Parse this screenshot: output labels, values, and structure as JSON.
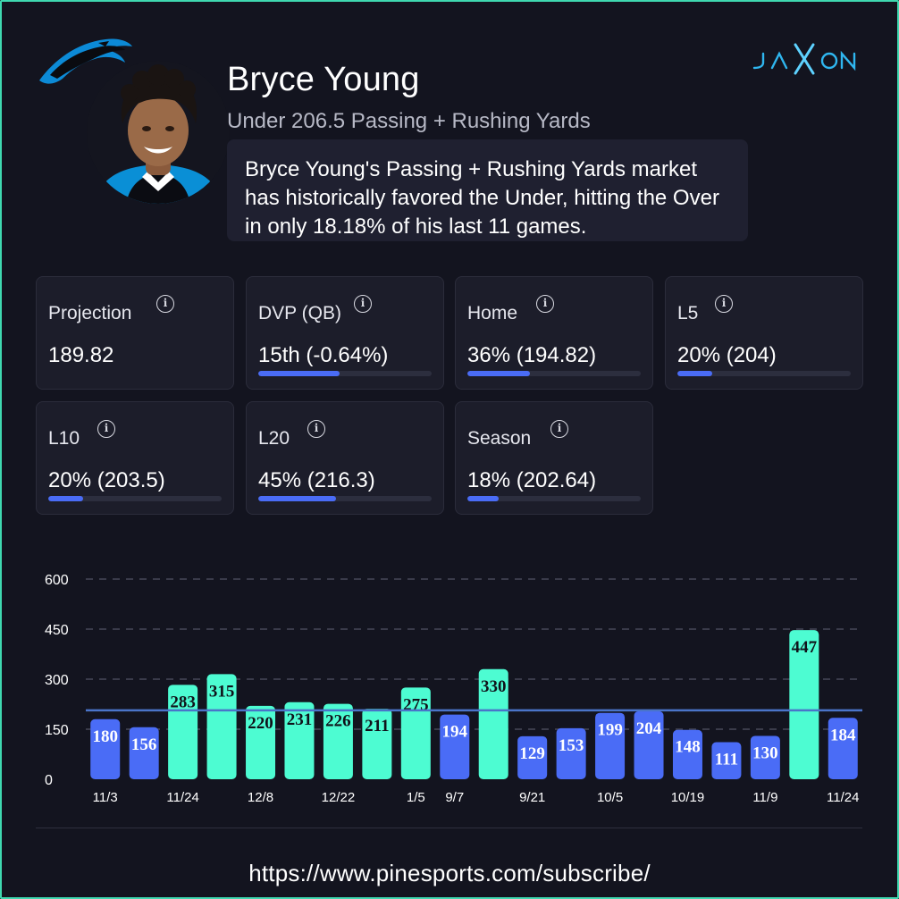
{
  "header": {
    "player_name": "Bryce Young",
    "market": "Under 206.5 Passing + Rushing Yards",
    "description": "Bryce Young's Passing + Rushing Yards market has historically favored the Under, hitting the Over in only 18.18% of his last 11 games.",
    "team_logo_icon": "panthers-logo-icon",
    "brand": "JAXON"
  },
  "stats": [
    {
      "label": "Projection",
      "value": "189.82",
      "bar_fraction": null
    },
    {
      "label": "DVP (QB)",
      "value": "15th (-0.64%)",
      "bar_fraction": 0.47
    },
    {
      "label": "Home",
      "value": "36% (194.82)",
      "bar_fraction": 0.36
    },
    {
      "label": "L5",
      "value": "20% (204)",
      "bar_fraction": 0.2
    },
    {
      "label": "L10",
      "value": "20% (203.5)",
      "bar_fraction": 0.2
    },
    {
      "label": "L20",
      "value": "45% (216.3)",
      "bar_fraction": 0.45
    },
    {
      "label": "Season",
      "value": "18% (202.64)",
      "bar_fraction": 0.18
    }
  ],
  "chart_data": {
    "type": "bar",
    "ylim": [
      0,
      600
    ],
    "yticks": [
      0,
      150,
      300,
      450,
      600
    ],
    "line_value": 206.5,
    "values": [
      180,
      156,
      283,
      315,
      220,
      231,
      226,
      211,
      275,
      194,
      330,
      129,
      153,
      199,
      204,
      148,
      111,
      130,
      447,
      184
    ],
    "x_tick_labels": [
      "11/3",
      "",
      "11/24",
      "",
      "12/8",
      "",
      "12/22",
      "",
      "1/5",
      "9/7",
      "",
      "9/21",
      "",
      "10/5",
      "",
      "10/19",
      "",
      "11/9",
      "",
      "11/24"
    ],
    "over_color": "#4dfcd2",
    "under_color": "#4a6cf6",
    "line_color": "#4a74c9",
    "grid": true
  },
  "footer": {
    "url": "https://www.pinesports.com/subscribe/"
  },
  "colors": {
    "background": "#13141f",
    "card": "#1c1d2a",
    "accent": "#4a6cf6",
    "border": "#3fd8b0"
  }
}
